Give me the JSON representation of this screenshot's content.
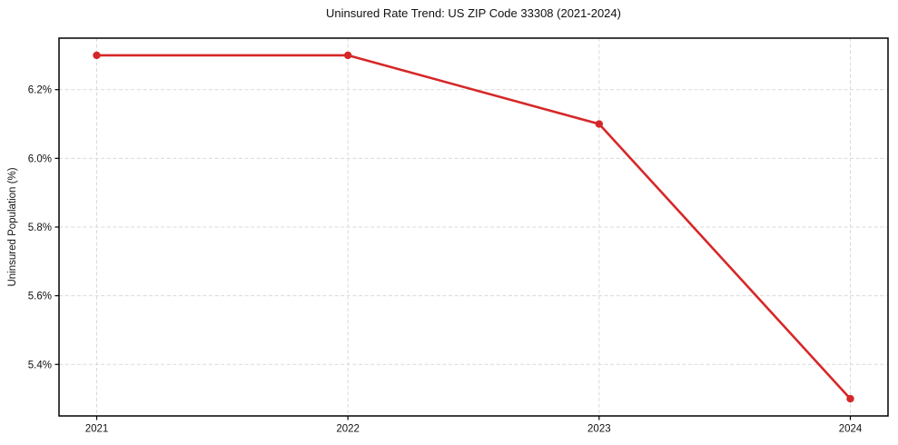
{
  "chart_data": {
    "type": "line",
    "title": "Uninsured Rate Trend: US ZIP Code 33308 (2021-2024)",
    "xlabel": "",
    "ylabel": "Uninsured Population (%)",
    "x": [
      2021,
      2022,
      2023,
      2024
    ],
    "series": [
      {
        "name": "Uninsured rate",
        "values": [
          6.3,
          6.3,
          6.1,
          5.3
        ],
        "color": "#d62728"
      }
    ],
    "xlim": [
      2020.85,
      2024.15
    ],
    "ylim": [
      5.25,
      6.35
    ],
    "xticks": [
      2021,
      2022,
      2023,
      2024
    ],
    "xtick_labels": [
      "2021",
      "2022",
      "2023",
      "2024"
    ],
    "yticks": [
      5.4,
      5.6,
      5.8,
      6.0,
      6.2
    ],
    "ytick_labels": [
      "5.4%",
      "5.6%",
      "5.8%",
      "6.0%",
      "6.2%"
    ],
    "grid": true,
    "grid_style": "dashed",
    "grid_color": "#d9d9d9",
    "axis_color": "#000000",
    "tick_label_color": "#111111",
    "background": "#ffffff",
    "legend": null,
    "marker": "circle"
  }
}
